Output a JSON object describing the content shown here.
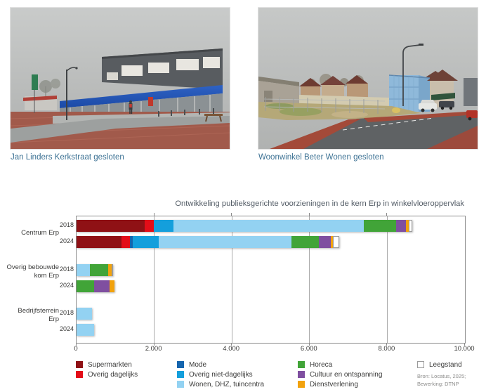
{
  "photos": [
    {
      "caption": "Jan Linders Kerkstraat gesloten"
    },
    {
      "caption": "Woonwinkel Beter Wonen gesloten"
    }
  ],
  "chart_data": {
    "type": "bar",
    "orientation": "horizontal",
    "stacked": true,
    "title": "Ontwikkeling publieksgerichte voorzieningen in de kern Erp in winkelvloeroppervlak",
    "xlim": [
      0,
      10000
    ],
    "x_tick_labels": [
      "0",
      "2.000",
      "4.000",
      "6.000",
      "8.000",
      "10.000"
    ],
    "grid": true,
    "legend_position": "bottom",
    "legend": [
      {
        "label": "Supermarkten",
        "color": "#8f1115"
      },
      {
        "label": "Overig dagelijks",
        "color": "#e30d18"
      },
      {
        "label": "Mode",
        "color": "#1565ae"
      },
      {
        "label": "Overig niet-dagelijks",
        "color": "#149fdc"
      },
      {
        "label": "Wonen, DHZ, tuincentra",
        "color": "#93d2f2"
      },
      {
        "label": "Horeca",
        "color": "#41a438"
      },
      {
        "label": "Cultuur en ontspanning",
        "color": "#7f4fa0"
      },
      {
        "label": "Dienstverlening",
        "color": "#f2a20d"
      },
      {
        "label": "Leegstand",
        "color": "#ffffff",
        "border": "#9b9b9b"
      }
    ],
    "groups": [
      {
        "label": "Centrum Erp",
        "label_lines": [
          "Centrum Erp"
        ],
        "rows": [
          {
            "year": "2018",
            "values": [
              1750,
              240,
              0,
              510,
              4900,
              825,
              250,
              85,
              90
            ]
          },
          {
            "year": "2024",
            "values": [
              1150,
              225,
              70,
              680,
              3400,
              720,
              300,
              50,
              170
            ]
          }
        ]
      },
      {
        "label": "Overig bebouwde kom Erp",
        "label_lines": [
          "Overig bebouwde",
          "kom Erp"
        ],
        "rows": [
          {
            "year": "2018",
            "values": [
              0,
              0,
              0,
              0,
              350,
              460,
              0,
              100,
              35
            ]
          },
          {
            "year": "2024",
            "values": [
              0,
              0,
              0,
              0,
              0,
              460,
              385,
              140,
              0
            ]
          }
        ]
      },
      {
        "label": "Bedrijfsterrein Erp",
        "label_lines": [
          "Bedrijfsterrein",
          "Erp"
        ],
        "rows": [
          {
            "year": "2018",
            "values": [
              0,
              0,
              0,
              0,
              400,
              0,
              0,
              0,
              0
            ]
          },
          {
            "year": "2024",
            "values": [
              0,
              0,
              0,
              0,
              450,
              0,
              0,
              0,
              0
            ]
          }
        ]
      }
    ],
    "source": [
      "Bron: Locatus, 2025;",
      "Bewerking: DTNP"
    ]
  }
}
